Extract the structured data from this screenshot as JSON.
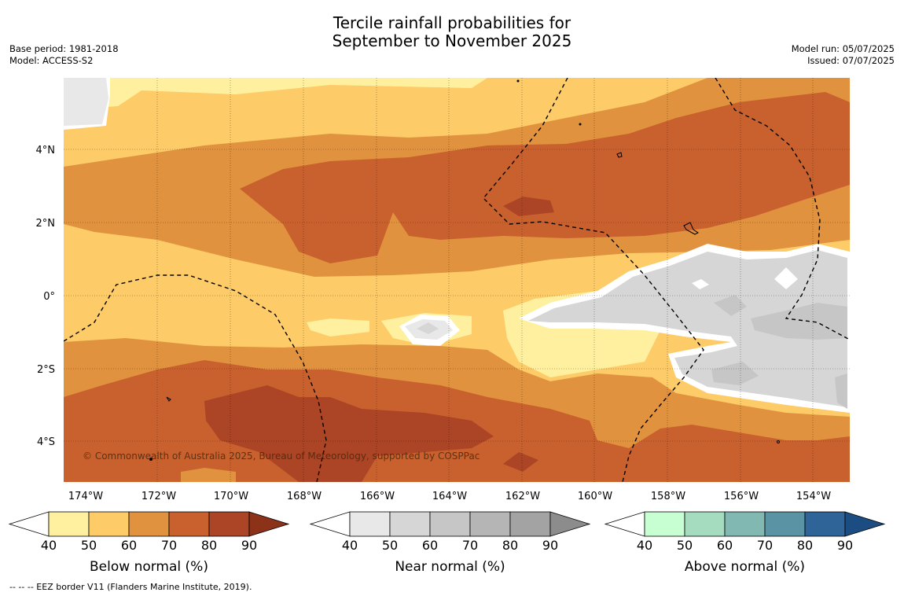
{
  "title_line1": "Tercile rainfall probabilities for",
  "title_line2": "September to November 2025",
  "meta_left": [
    "Base period: 1981-2018",
    "Model: ACCESS-S2"
  ],
  "meta_right": [
    "Model run: 05/07/2025",
    "Issued: 07/07/2025"
  ],
  "copyright": "© Commonwealth of Australia 2025, Bureau of Meteorology, supported by COSPPac",
  "lon_labels": [
    "174°W",
    "172°W",
    "170°W",
    "168°W",
    "166°W",
    "164°W",
    "162°W",
    "160°W",
    "158°W",
    "156°W",
    "154°W"
  ],
  "lat_labels": [
    "4°N",
    "2°N",
    "0°",
    "2°S",
    "4°S"
  ],
  "legend": [
    {
      "title": "Below normal (%)",
      "ticks": [
        "40",
        "50",
        "60",
        "70",
        "80",
        "90"
      ],
      "colors": [
        "#fff0a0",
        "#fdcb67",
        "#e0923f",
        "#c9612e",
        "#ac4426"
      ],
      "over": "#8c3219"
    },
    {
      "title": "Near normal (%)",
      "ticks": [
        "40",
        "50",
        "60",
        "70",
        "80",
        "90"
      ],
      "colors": [
        "#e8e8e8",
        "#d6d6d6",
        "#c6c6c6",
        "#b5b5b5",
        "#a3a3a3"
      ],
      "over": "#8c8c8c"
    },
    {
      "title": "Above normal (%)",
      "ticks": [
        "40",
        "50",
        "60",
        "70",
        "80",
        "90"
      ],
      "colors": [
        "#c8ffd2",
        "#a5dcbf",
        "#82b8b2",
        "#5a93a3",
        "#2f6498"
      ],
      "over": "#1b4c82"
    }
  ],
  "footnote": "--  --  -- EEZ border V11 (Flanders Marine Institute, 2019)."
}
